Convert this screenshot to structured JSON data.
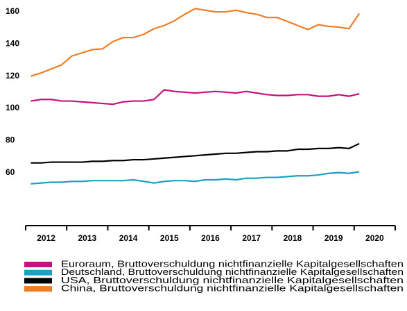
{
  "chart_data": {
    "type": "line",
    "x": [
      2012.125,
      2012.375,
      2012.625,
      2012.875,
      2013.125,
      2013.375,
      2013.625,
      2013.875,
      2014.125,
      2014.375,
      2014.625,
      2014.875,
      2015.125,
      2015.375,
      2015.625,
      2015.875,
      2016.125,
      2016.375,
      2016.625,
      2016.875,
      2017.125,
      2017.375,
      2017.625,
      2017.875,
      2018.125,
      2018.375,
      2018.625,
      2018.875,
      2019.125,
      2019.375,
      2019.625,
      2019.875,
      2020.125
    ],
    "xlim": [
      2012,
      2021
    ],
    "xticks": [
      2012,
      2013,
      2014,
      2015,
      2016,
      2017,
      2018,
      2019,
      2020,
      2021
    ],
    "year_labels": [
      "2012",
      "2013",
      "2014",
      "2015",
      "2016",
      "2017",
      "2018",
      "2019",
      "2020"
    ],
    "ylim": [
      27,
      165
    ],
    "yticks": [
      60,
      80,
      100,
      120,
      140,
      160
    ],
    "grid": false,
    "legend": "bottom",
    "series": [
      {
        "name": "Euroraum, Bruttoverschuldung nichtfinanzielle Kapitalgesellschaften",
        "color": "#c8107f",
        "values": [
          104.5,
          105.5,
          105.5,
          104.5,
          104.5,
          104,
          103.5,
          103,
          102.5,
          104,
          104.5,
          104.5,
          105.5,
          111.5,
          110.5,
          110,
          109.5,
          110,
          110.5,
          110,
          109.5,
          110.5,
          109.5,
          108.5,
          108,
          108,
          108.5,
          108.5,
          107.5,
          107.5,
          108.5,
          107.5,
          109
        ]
      },
      {
        "name": "Deutschland, Bruttoverschuldung nichtfinanzielle Kapitalgesellschaften",
        "color": "#1aa0c2",
        "values": [
          53,
          53.5,
          54,
          54,
          54.5,
          54.5,
          55,
          55,
          55,
          55,
          55.5,
          54.5,
          53.5,
          54.5,
          55,
          55,
          54.5,
          55.5,
          55.5,
          56,
          55.5,
          56.5,
          56.5,
          57,
          57,
          57.5,
          58,
          58,
          58.5,
          59.5,
          60,
          59.5,
          60.5
        ]
      },
      {
        "name": "USA, Bruttoverschuldung nichtfinanzielle Kapitalgesellschaften",
        "color": "#000000",
        "values": [
          66,
          66,
          66.5,
          66.5,
          66.5,
          66.5,
          67,
          67,
          67.5,
          67.5,
          68,
          68,
          68.5,
          69,
          69.5,
          70,
          70.5,
          71,
          71.5,
          72,
          72,
          72.5,
          73,
          73,
          73.5,
          73.5,
          74.5,
          74.5,
          75,
          75,
          75.5,
          75,
          78
        ]
      },
      {
        "name": "China, Bruttoverschuldung nichtfinanzielle Kapitalgesellschaften",
        "color": "#ef7d22",
        "values": [
          120,
          122,
          124.5,
          127,
          132.5,
          134.5,
          136.5,
          137,
          141.5,
          144,
          144,
          146,
          149.5,
          151.5,
          154.5,
          158.5,
          162,
          161,
          160,
          160,
          161,
          159.5,
          158.5,
          156.5,
          156.5,
          154,
          151.5,
          149,
          152,
          151,
          150.5,
          149.5,
          159
        ]
      }
    ]
  }
}
